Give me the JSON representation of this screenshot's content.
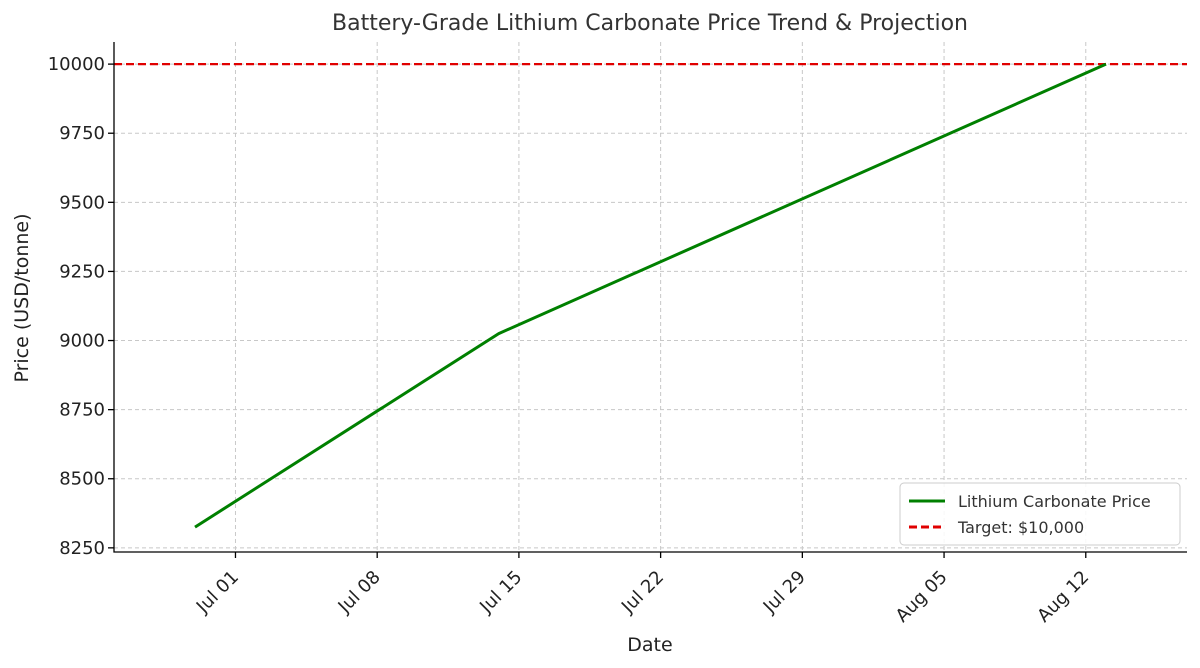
{
  "chart_data": {
    "type": "line",
    "title": "Battery-Grade Lithium Carbonate Price Trend & Projection",
    "xlabel": "Date",
    "ylabel": "Price (USD/tonne)",
    "xlim": [
      "2024-06-25",
      "2024-08-17"
    ],
    "ylim": [
      8235,
      10080
    ],
    "x_ticks": [
      "2024-07-01",
      "2024-07-08",
      "2024-07-15",
      "2024-07-22",
      "2024-07-29",
      "2024-08-05",
      "2024-08-12"
    ],
    "x_tick_labels": [
      "Jul 01",
      "Jul 08",
      "Jul 15",
      "Jul 22",
      "Jul 29",
      "Aug 05",
      "Aug 12"
    ],
    "y_ticks": [
      8250,
      8500,
      8750,
      9000,
      9250,
      9500,
      9750,
      10000
    ],
    "grid": true,
    "legend_position": "bottom-right",
    "series": [
      {
        "name": "Lithium Carbonate Price",
        "color": "#008000",
        "style": "solid",
        "x": [
          "2024-06-29",
          "2024-07-14",
          "2024-08-13"
        ],
        "y": [
          8325,
          9025,
          10000
        ]
      }
    ],
    "reference_lines": [
      {
        "name": "Target: $10,000",
        "y": 10000,
        "color": "#e00000",
        "style": "dashed"
      }
    ]
  }
}
